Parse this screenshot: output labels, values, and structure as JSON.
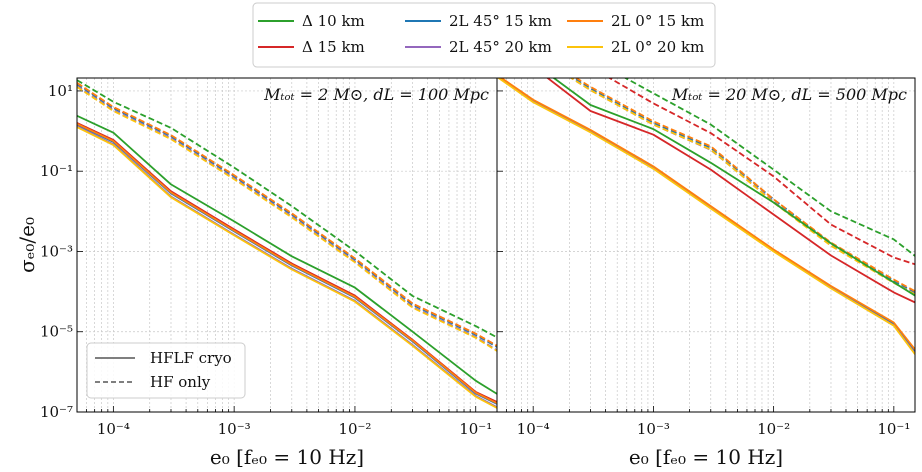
{
  "chart_data": {
    "type": "line",
    "x_scale": "log",
    "y_scale": "log",
    "xlim": [
      5e-05,
      0.15
    ],
    "ylim": [
      1e-07,
      21
    ],
    "grid": true,
    "xlabel": "e₀ [fₑ₀ = 10 Hz]",
    "ylabel": "σₑ₀/e₀",
    "x_tick_values": [
      0.0001,
      0.001,
      0.01,
      0.1
    ],
    "x_tick_labels": [
      "10⁻⁴",
      "10⁻³",
      "10⁻²",
      "10⁻¹"
    ],
    "y_tick_values": [
      10,
      0.1,
      0.001,
      1e-05,
      1e-07
    ],
    "y_tick_labels": [
      "10¹",
      "10⁻¹",
      "10⁻³",
      "10⁻⁵",
      "10⁻⁷"
    ],
    "legend": {
      "placement": "top-center (outside)",
      "entries": [
        {
          "key": "d10",
          "label": "Δ 10 km",
          "color": "#2ca02c"
        },
        {
          "key": "d15",
          "label": "Δ 15 km",
          "color": "#d62728"
        },
        {
          "key": "l45_15",
          "label": "2L 45° 15 km",
          "color": "#1f77b4"
        },
        {
          "key": "l45_20",
          "label": "2L 45° 20 km",
          "color": "#9467bd"
        },
        {
          "key": "l0_15",
          "label": "2L 0° 15 km",
          "color": "#ff7f0e"
        },
        {
          "key": "l0_20",
          "label": "2L 0° 20 km",
          "color": "#fcc30b"
        }
      ]
    },
    "style_legend": {
      "placement": "lower-left (left panel)",
      "entries": [
        {
          "style": "solid",
          "label": "HFLF cryo"
        },
        {
          "style": "dashed",
          "label": "HF only"
        }
      ]
    },
    "x": [
      5e-05,
      0.0001,
      0.0003,
      0.001,
      0.003,
      0.01,
      0.03,
      0.1,
      0.15
    ],
    "panels": [
      {
        "annotation": "Mₜₒₜ = 2 M⊙, dL = 100 Mpc",
        "series_log10_y": {
          "solid": {
            "d10": [
              0.38,
              -0.04,
              -1.33,
              -2.25,
              -3.12,
              -3.9,
              -5.0,
              -6.22,
              -6.55
            ],
            "d15": [
              0.2,
              -0.22,
              -1.5,
              -2.45,
              -3.3,
              -4.1,
              -5.2,
              -6.5,
              -6.75
            ],
            "l45_15": [
              0.16,
              -0.27,
              -1.55,
              -2.5,
              -3.35,
              -4.15,
              -5.24,
              -6.54,
              -6.8
            ],
            "l45_20": [
              0.12,
              -0.33,
              -1.63,
              -2.58,
              -3.43,
              -4.23,
              -5.33,
              -6.6,
              -6.88
            ],
            "l0_15": [
              0.18,
              -0.25,
              -1.53,
              -2.48,
              -3.33,
              -4.13,
              -5.22,
              -6.52,
              -6.78
            ],
            "l0_20": [
              0.1,
              -0.35,
              -1.65,
              -2.6,
              -3.45,
              -4.25,
              -5.35,
              -6.62,
              -6.9
            ]
          },
          "dashed": {
            "d10": [
              1.27,
              0.73,
              0.08,
              -0.91,
              -1.87,
              -2.99,
              -4.11,
              -4.86,
              -5.14
            ],
            "d15": [
              1.2,
              0.58,
              -0.12,
              -1.12,
              -2.07,
              -3.18,
              -4.3,
              -5.05,
              -5.35
            ],
            "l45_15": [
              1.17,
              0.57,
              -0.13,
              -1.13,
              -2.08,
              -3.2,
              -4.33,
              -5.08,
              -5.38
            ],
            "l45_20": [
              1.12,
              0.52,
              -0.18,
              -1.18,
              -2.13,
              -3.25,
              -4.38,
              -5.13,
              -5.46
            ],
            "l0_15": [
              1.2,
              0.6,
              -0.1,
              -1.1,
              -2.05,
              -3.17,
              -4.3,
              -5.05,
              -5.35
            ],
            "l0_20": [
              1.1,
              0.5,
              -0.2,
              -1.2,
              -2.15,
              -3.27,
              -4.4,
              -5.15,
              -5.48
            ]
          }
        }
      },
      {
        "annotation": "Mₜₒₜ = 20 M⊙, dL = 500 Mpc",
        "series_log10_y": {
          "solid": {
            "d10": [
              2.6,
              1.7,
              0.65,
              0.05,
              -0.79,
              -1.78,
              -2.8,
              -3.77,
              -4.1
            ],
            "d15": [
              2.5,
              1.6,
              0.5,
              -0.09,
              -0.96,
              -2.08,
              -3.1,
              -4.02,
              -4.27
            ],
            "l45_15": [
              1.38,
              0.76,
              0.01,
              -0.9,
              -1.89,
              -2.97,
              -3.88,
              -4.8,
              -5.48
            ],
            "l45_20": [
              1.36,
              0.73,
              -0.02,
              -0.93,
              -1.92,
              -2.99,
              -3.91,
              -4.84,
              -5.54
            ],
            "l0_15": [
              1.4,
              0.78,
              0.03,
              -0.88,
              -1.87,
              -2.95,
              -3.86,
              -4.77,
              -5.44
            ],
            "l0_20": [
              1.35,
              0.72,
              -0.03,
              -0.94,
              -1.93,
              -3.0,
              -3.92,
              -4.85,
              -5.56
            ]
          },
          "dashed": {
            "d10": [
              3.5,
              2.7,
              1.8,
              0.94,
              0.16,
              -0.96,
              -2.0,
              -2.7,
              -3.11
            ],
            "d15": [
              3.3,
              2.5,
              1.6,
              0.69,
              -0.05,
              -1.13,
              -2.33,
              -3.15,
              -3.32
            ],
            "l45_15": [
              2.76,
              1.96,
              1.06,
              0.2,
              -0.42,
              -1.7,
              -2.8,
              -3.73,
              -4.02
            ],
            "l45_20": [
              2.72,
              1.92,
              1.02,
              0.16,
              -0.47,
              -1.76,
              -2.85,
              -3.78,
              -4.06
            ],
            "l0_15": [
              2.8,
              2.0,
              1.1,
              0.24,
              -0.38,
              -1.7,
              -2.78,
              -3.7,
              -3.99
            ],
            "l0_20": [
              2.72,
              1.92,
              1.02,
              0.16,
              -0.46,
              -1.78,
              -2.86,
              -3.78,
              -4.07
            ]
          }
        }
      }
    ]
  }
}
